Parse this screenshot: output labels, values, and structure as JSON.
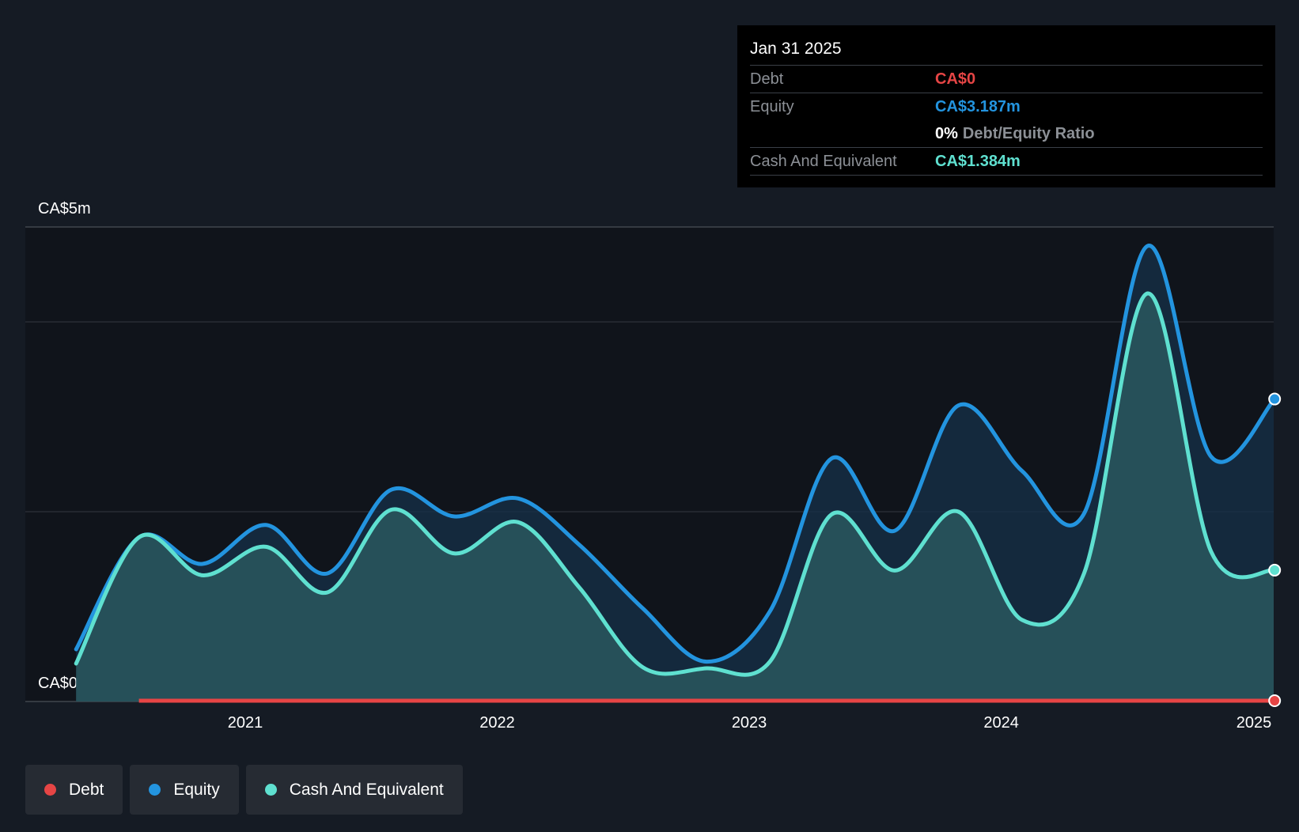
{
  "colors": {
    "background": "#151b24",
    "debt": "#e64545",
    "equity": "#2394df",
    "cash": "#5fe0d0"
  },
  "tooltip": {
    "date": "Jan 31 2025",
    "debt_label": "Debt",
    "debt_value": "CA$0",
    "equity_label": "Equity",
    "equity_value": "CA$3.187m",
    "ratio_pct": "0%",
    "ratio_label": "Debt/Equity Ratio",
    "cash_label": "Cash And Equivalent",
    "cash_value": "CA$1.384m"
  },
  "legend": [
    {
      "label": "Debt",
      "color": "#e64545"
    },
    {
      "label": "Equity",
      "color": "#2394df"
    },
    {
      "label": "Cash And Equivalent",
      "color": "#5fe0d0"
    }
  ],
  "chart_data": {
    "type": "area",
    "y_top_label": "CA$5m",
    "y_bottom_label": "CA$0",
    "ylim": [
      0,
      5
    ],
    "x_ticks": [
      "2021",
      "2022",
      "2023",
      "2024",
      "2025"
    ],
    "grid": true,
    "series": [
      {
        "name": "Equity",
        "points": [
          [
            "2020-05-01",
            0.55
          ],
          [
            "2020-07-31",
            1.73
          ],
          [
            "2020-10-31",
            1.45
          ],
          [
            "2021-01-31",
            1.86
          ],
          [
            "2021-04-30",
            1.35
          ],
          [
            "2021-07-31",
            2.23
          ],
          [
            "2021-10-31",
            1.95
          ],
          [
            "2022-01-31",
            2.14
          ],
          [
            "2022-04-30",
            1.65
          ],
          [
            "2022-07-31",
            0.98
          ],
          [
            "2022-10-31",
            0.42
          ],
          [
            "2023-01-31",
            0.95
          ],
          [
            "2023-04-30",
            2.56
          ],
          [
            "2023-07-31",
            1.8
          ],
          [
            "2023-10-31",
            3.12
          ],
          [
            "2024-01-31",
            2.43
          ],
          [
            "2024-04-30",
            1.98
          ],
          [
            "2024-07-31",
            4.8
          ],
          [
            "2024-10-31",
            2.58
          ],
          [
            "2025-01-31",
            3.187
          ]
        ]
      },
      {
        "name": "Cash And Equivalent",
        "points": [
          [
            "2020-05-01",
            0.4
          ],
          [
            "2020-07-31",
            1.73
          ],
          [
            "2020-10-31",
            1.33
          ],
          [
            "2021-01-31",
            1.63
          ],
          [
            "2021-04-30",
            1.15
          ],
          [
            "2021-07-31",
            2.02
          ],
          [
            "2021-10-31",
            1.56
          ],
          [
            "2022-01-31",
            1.89
          ],
          [
            "2022-04-30",
            1.2
          ],
          [
            "2022-07-31",
            0.36
          ],
          [
            "2022-10-31",
            0.35
          ],
          [
            "2023-01-31",
            0.42
          ],
          [
            "2023-04-30",
            1.97
          ],
          [
            "2023-07-31",
            1.38
          ],
          [
            "2023-10-31",
            2.0
          ],
          [
            "2024-01-31",
            0.86
          ],
          [
            "2024-04-30",
            1.35
          ],
          [
            "2024-07-31",
            4.3
          ],
          [
            "2024-10-31",
            1.58
          ],
          [
            "2025-01-31",
            1.384
          ]
        ]
      },
      {
        "name": "Debt",
        "points": [
          [
            "2020-07-31",
            0
          ],
          [
            "2025-01-31",
            0
          ]
        ]
      }
    ]
  }
}
